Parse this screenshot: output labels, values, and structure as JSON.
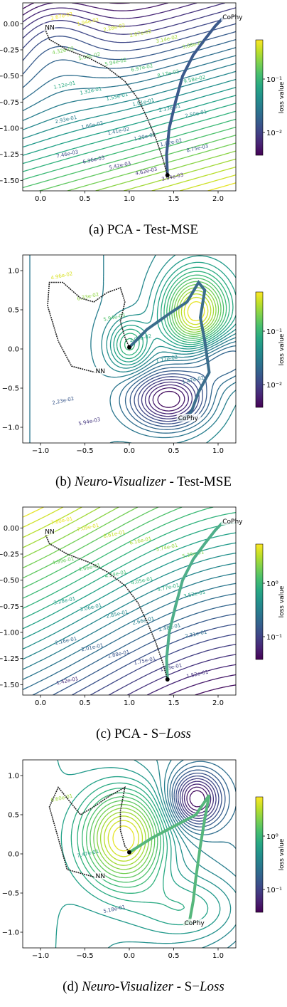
{
  "chart_data": [
    {
      "type": "contour",
      "caption": {
        "prefix": "(a) PCA - Test-MSE"
      },
      "xlim": [
        -0.2,
        2.2
      ],
      "ylim": [
        -1.6,
        0.2
      ],
      "xticks": [
        "0.0",
        "0.5",
        "1.0",
        "1.5",
        "2.0"
      ],
      "xtick_values": [
        0,
        0.5,
        1,
        1.5,
        2
      ],
      "yticks": [
        "0.00",
        "−0.25",
        "−0.50",
        "−0.75",
        "−1.00",
        "−1.25",
        "−1.50"
      ],
      "ytick_values": [
        0,
        -0.25,
        -0.5,
        -0.75,
        -1,
        -1.25,
        -1.5
      ],
      "colorbar": {
        "label": "loss value",
        "ticks": [
          "10⁻¹",
          "10⁻²"
        ],
        "scale": "log"
      },
      "points": [
        {
          "label": "NN",
          "x": 0.05,
          "y": -0.05
        },
        {
          "label": "CoPhy",
          "x": 2.05,
          "y": 0.05
        }
      ],
      "contour_labels": [
        "2.67e-02",
        "1.94e-02",
        "2.28e-02",
        "2.67e-02",
        "3.14e-02",
        "3.68e-02",
        "4.32e-02",
        "5.06e-02",
        "5.94e-02",
        "6.97e-02",
        "8.17e-02",
        "9.58e-02",
        "1.12e-01",
        "1.32e-01",
        "1.55e-01",
        "1.81e-01",
        "2.13e-01",
        "2.50e-01",
        "2.93e-01",
        "1.66e-02",
        "1.41e-02",
        "1.20e-02",
        "1.02e-02",
        "8.75e-03",
        "7.46e-03",
        "6.36e-03",
        "5.42e-03",
        "4.62e-03",
        "3.94e-03"
      ]
    },
    {
      "type": "contour",
      "caption": {
        "prefix": "(b) ",
        "italic": "Neuro-Visualizer",
        "suffix": " - Test-MSE"
      },
      "xlim": [
        -1.2,
        1.2
      ],
      "ylim": [
        -1.2,
        1.2
      ],
      "xticks": [
        "−1.0",
        "−0.5",
        "0.0",
        "0.5",
        "1.0"
      ],
      "xtick_values": [
        -1,
        -0.5,
        0,
        0.5,
        1
      ],
      "yticks": [
        "1.0",
        "0.5",
        "0.0",
        "−0.5",
        "−1.0"
      ],
      "ytick_values": [
        1,
        0.5,
        0,
        -0.5,
        -1
      ],
      "colorbar": {
        "label": "loss value",
        "ticks": [
          "10⁻¹",
          "10⁻²"
        ],
        "scale": "log"
      },
      "points": [
        {
          "label": "NN",
          "x": -0.38,
          "y": -0.3
        },
        {
          "label": "CoPhy",
          "x": 0.55,
          "y": -0.9
        }
      ],
      "contour_labels": [
        "4.96e-02",
        "6.33e-02",
        "5.94e-03",
        "2.03e-02",
        "1.72e-02",
        "1.47e-02",
        "2.23e-02",
        "5.94e-03"
      ]
    },
    {
      "type": "contour",
      "caption": {
        "prefix": "(c) PCA - S−",
        "italic": "Loss"
      },
      "xlim": [
        -0.2,
        2.2
      ],
      "ylim": [
        -1.6,
        0.2
      ],
      "xticks": [
        "0.0",
        "0.5",
        "1.0",
        "1.5",
        "2.0"
      ],
      "xtick_values": [
        0,
        0.5,
        1,
        1.5,
        2
      ],
      "yticks": [
        "0.00",
        "−0.25",
        "−0.50",
        "−0.75",
        "−1.00",
        "−1.25",
        "−1.50"
      ],
      "ytick_values": [
        0,
        -0.25,
        -0.5,
        -0.75,
        -1,
        -1.25,
        -1.5
      ],
      "colorbar": {
        "label": "loss value",
        "ticks": [
          "10⁰",
          "10⁻¹"
        ],
        "scale": "log"
      },
      "points": [
        {
          "label": "NN",
          "x": 0.05,
          "y": -0.05
        },
        {
          "label": "CoPhy",
          "x": 2.05,
          "y": 0.05
        }
      ],
      "contour_labels": [
        "7.60e-01",
        "7.09e-01",
        "6.61e-01",
        "6.16e-01",
        "5.74e-01",
        "5.36e-01",
        "4.99e-01",
        "4.66e-01",
        "4.34e-01",
        "4.05e-01",
        "3.77e-01",
        "3.52e-01",
        "3.28e-01",
        "3.06e-01",
        "2.85e-01",
        "2.66e-01",
        "2.48e-01",
        "2.31e-01",
        "2.16e-01",
        "2.01e-01",
        "1.88e-01",
        "1.75e-01",
        "1.63e-01",
        "1.52e-01",
        "1.42e-01"
      ]
    },
    {
      "type": "contour",
      "caption": {
        "prefix": "(d) ",
        "italic": "Neuro-Visualizer",
        "suffix": " - S−",
        "italic2": "Loss"
      },
      "xlim": [
        -1.2,
        1.2
      ],
      "ylim": [
        -1.2,
        1.2
      ],
      "xticks": [
        "−1.0",
        "−0.5",
        "0.0",
        "0.5",
        "1.0"
      ],
      "xtick_values": [
        -1,
        -0.5,
        0,
        0.5,
        1
      ],
      "yticks": [
        "1.0",
        "0.5",
        "0.0",
        "−0.5",
        "−1.0"
      ],
      "ytick_values": [
        1,
        0.5,
        0,
        -0.5,
        -1
      ],
      "colorbar": {
        "label": "loss value",
        "ticks": [
          "10⁰",
          "10⁻¹"
        ],
        "scale": "log"
      },
      "points": [
        {
          "label": "NN",
          "x": -0.38,
          "y": -0.3
        },
        {
          "label": "CoPhy",
          "x": 0.62,
          "y": -0.9
        }
      ],
      "contour_labels": [
        "6.60e-01",
        "7.47e-01",
        "5.18e-01"
      ]
    }
  ]
}
